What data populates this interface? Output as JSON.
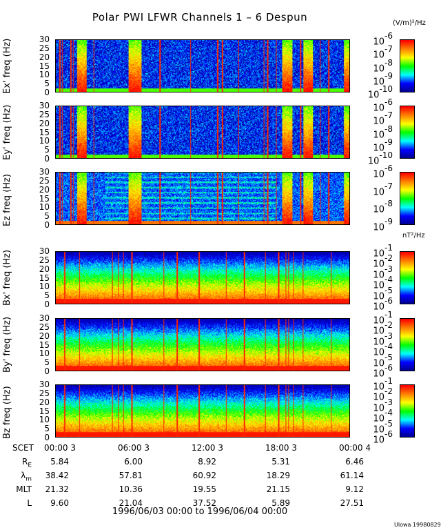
{
  "title": "Polar PWI LFWR Channels 1 – 6 Despun",
  "electric_unit": "(V/m)²/Hz",
  "magnetic_unit": "nT²/Hz",
  "footer": "Ulowa 19980829",
  "chart_data": {
    "type": "heatmap",
    "title": "Polar PWI LFWR Channels 1 – 6 Despun",
    "x_range": "1996/06/03 00:00 to 1996/06/04 00:00",
    "x_ticks": [
      "00:00 3",
      "06:00 3",
      "12:00 3",
      "18:00 3",
      "00:00 4"
    ],
    "x_label": "SCET",
    "panels": [
      {
        "ylabel": "Ex' freq (Hz)",
        "ylim": [
          0,
          30
        ],
        "yticks": [
          "0",
          "5",
          "10",
          "15",
          "20",
          "25",
          "30"
        ],
        "colorbar": {
          "unit": "(V/m)²/Hz",
          "exponents": [
            "-10",
            "-9",
            "-8",
            "-7",
            "-6"
          ]
        }
      },
      {
        "ylabel": "Ey' freq (Hz)",
        "ylim": [
          0,
          30
        ],
        "yticks": [
          "0",
          "5",
          "10",
          "15",
          "20",
          "25",
          "30"
        ],
        "colorbar": {
          "unit": "(V/m)²/Hz",
          "exponents": [
            "-10",
            "-9",
            "-8",
            "-7",
            "-6"
          ]
        }
      },
      {
        "ylabel": "Ez freq (Hz)",
        "ylim": [
          0,
          30
        ],
        "yticks": [
          "0",
          "5",
          "10",
          "15",
          "20",
          "25",
          "30"
        ],
        "colorbar": {
          "unit": "(V/m)²/Hz",
          "exponents": [
            "-9",
            "-8",
            "-7",
            "-6"
          ]
        }
      },
      {
        "ylabel": "Bx' freq (Hz)",
        "ylim": [
          0,
          30
        ],
        "yticks": [
          "0",
          "5",
          "10",
          "15",
          "20",
          "25",
          "30"
        ],
        "colorbar": {
          "unit": "nT²/Hz",
          "exponents": [
            "-6",
            "-5",
            "-4",
            "-3",
            "-2",
            "-1"
          ]
        }
      },
      {
        "ylabel": "By' freq (Hz)",
        "ylim": [
          0,
          30
        ],
        "yticks": [
          "0",
          "5",
          "10",
          "15",
          "20",
          "25",
          "30"
        ],
        "colorbar": {
          "unit": "nT²/Hz",
          "exponents": [
            "-6",
            "-5",
            "-4",
            "-3",
            "-2",
            "-1"
          ]
        }
      },
      {
        "ylabel": "Bz freq (Hz)",
        "ylim": [
          0,
          30
        ],
        "yticks": [
          "0",
          "5",
          "10",
          "15",
          "20",
          "25",
          "30"
        ],
        "colorbar": {
          "unit": "nT²/Hz",
          "exponents": [
            "-6",
            "-5",
            "-4",
            "-3",
            "-2",
            "-1"
          ]
        }
      }
    ],
    "colormap": [
      "#00008c",
      "#0000ff",
      "#00ffff",
      "#00ff00",
      "#ffff00",
      "#ff8000",
      "#ff0000"
    ],
    "ephemeris": {
      "rows": [
        {
          "label": "R",
          "sub": "E",
          "values": [
            "5.84",
            "6.00",
            "8.92",
            "5.31",
            "6.46"
          ]
        },
        {
          "label": "λ",
          "sub": "m",
          "values": [
            "38.42",
            "57.81",
            "60.92",
            "18.29",
            "61.14"
          ]
        },
        {
          "label": "MLT",
          "sub": "",
          "values": [
            "21.32",
            "10.36",
            "19.55",
            "21.15",
            "9.12"
          ]
        },
        {
          "label": "L",
          "sub": "",
          "values": [
            "9.60",
            "21.04",
            "37.52",
            "5.89",
            "27.51"
          ]
        }
      ]
    }
  }
}
